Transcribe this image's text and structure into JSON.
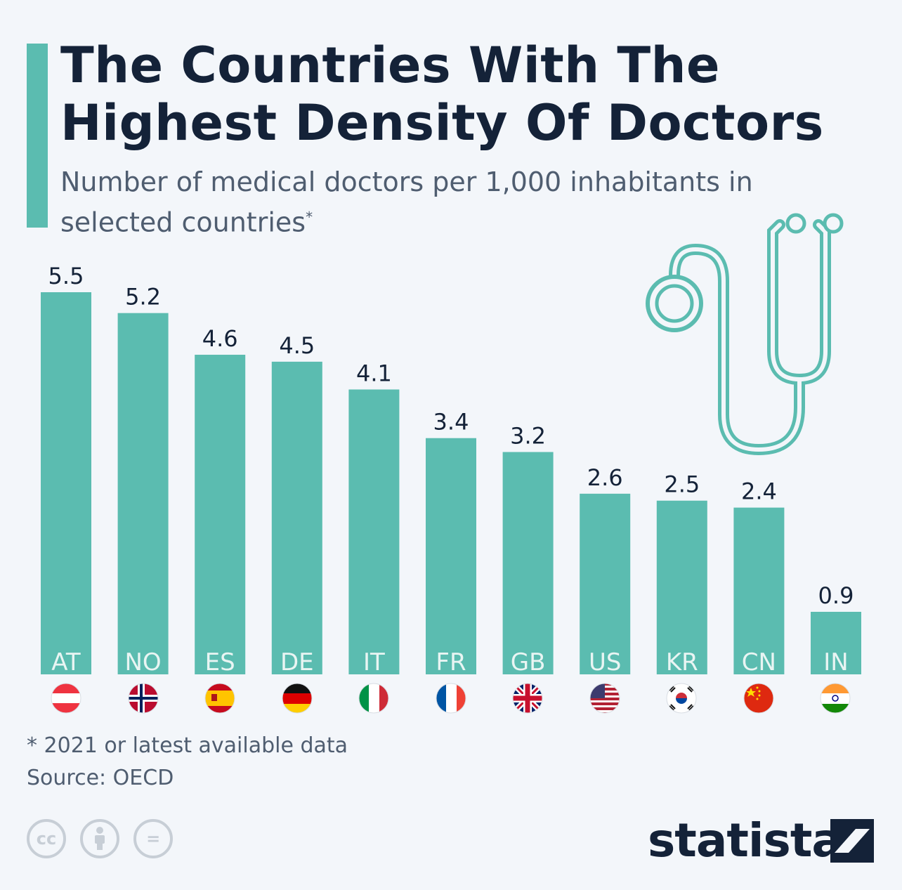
{
  "header": {
    "title": "The Countries With The Highest Density Of Doctors",
    "subtitle": "Number of medical doctors per 1,000 inhabitants in selected countries",
    "subtitle_mark": "*"
  },
  "colors": {
    "accent": "#5bbcb0",
    "text": "#142238",
    "muted": "#4f5d70",
    "background": "#f3f6fa"
  },
  "chart_data": {
    "type": "bar",
    "categories": [
      "AT",
      "NO",
      "ES",
      "DE",
      "IT",
      "FR",
      "GB",
      "US",
      "KR",
      "CN",
      "IN"
    ],
    "values": [
      5.5,
      5.2,
      4.6,
      4.5,
      4.1,
      3.4,
      3.2,
      2.6,
      2.5,
      2.4,
      0.9
    ],
    "value_labels": [
      "5.5",
      "5.2",
      "4.6",
      "4.5",
      "4.1",
      "3.4",
      "3.2",
      "2.6",
      "2.5",
      "2.4",
      "0.9"
    ],
    "title": "The Countries With The Highest Density Of Doctors",
    "ylabel": "",
    "xlabel": "",
    "ylim": [
      0,
      5.5
    ],
    "grid": false,
    "legend": "none",
    "bar_color": "#5bbcb0"
  },
  "flags": [
    "austria-flag-icon",
    "norway-flag-icon",
    "spain-flag-icon",
    "germany-flag-icon",
    "italy-flag-icon",
    "france-flag-icon",
    "uk-flag-icon",
    "usa-flag-icon",
    "korea-flag-icon",
    "china-flag-icon",
    "india-flag-icon"
  ],
  "illustration": "stethoscope-icon",
  "footer": {
    "note": "* 2021 or latest available data",
    "source": "Source: OECD",
    "brand": "statista",
    "license_icons": [
      "cc-icon",
      "attribution-icon",
      "no-derivatives-icon"
    ],
    "license_cc": "cc",
    "license_nd": "="
  }
}
